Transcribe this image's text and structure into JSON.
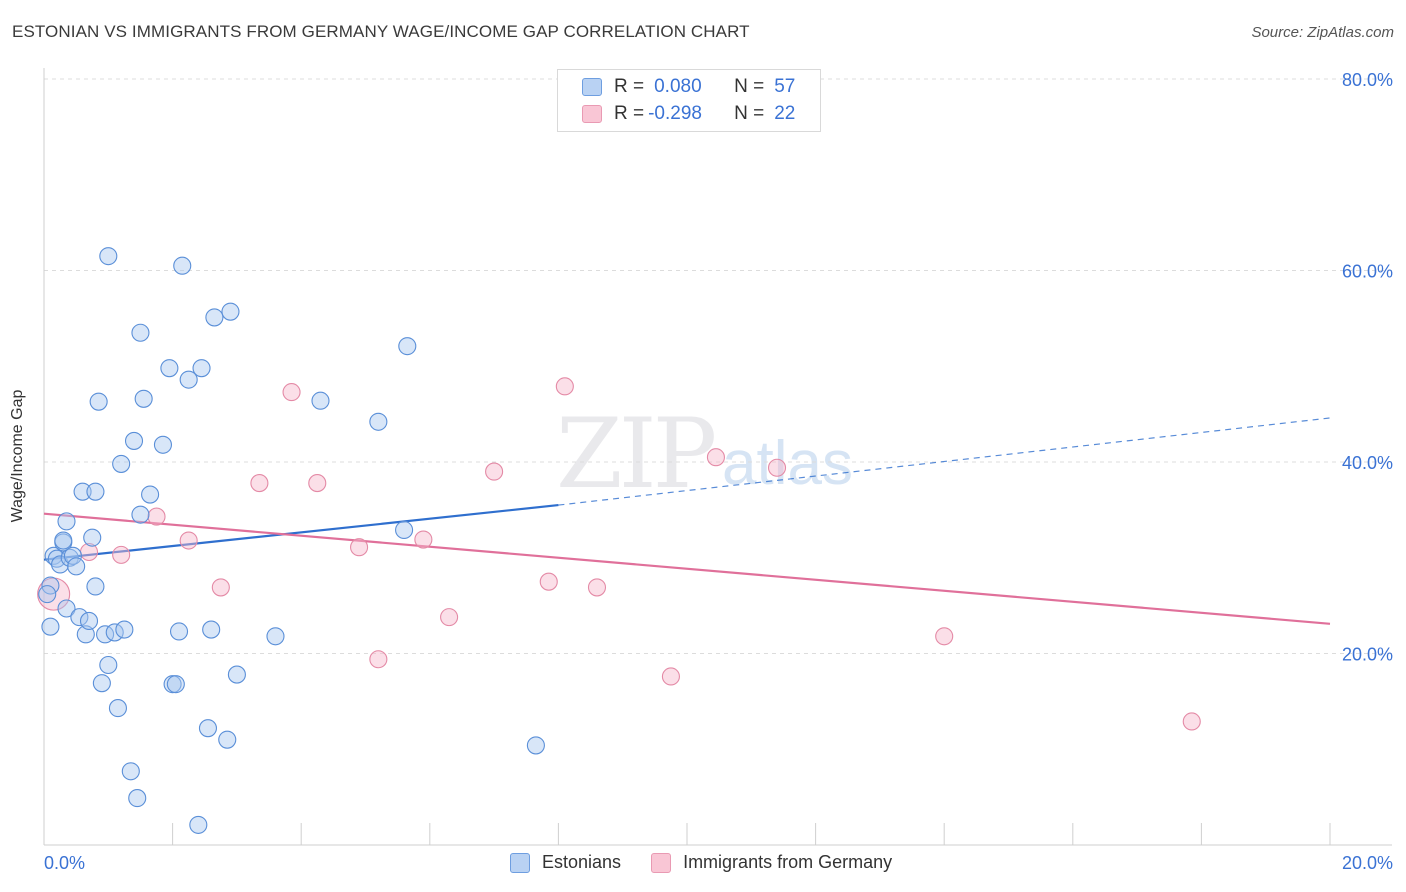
{
  "header": {
    "title": "ESTONIAN VS IMMIGRANTS FROM GERMANY WAGE/INCOME GAP CORRELATION CHART",
    "source": "Source: ZipAtlas.com"
  },
  "watermark": {
    "zip": "ZIP",
    "atlas": "atlas"
  },
  "legend_top": {
    "rows": [
      {
        "r_label": "R =",
        "r_value": "0.080",
        "n_label": "N =",
        "n_value": "57"
      },
      {
        "r_label": "R =",
        "r_value": "-0.298",
        "n_label": "N =",
        "n_value": "22"
      }
    ]
  },
  "legend_bottom": {
    "items": [
      {
        "label": "Estonians"
      },
      {
        "label": "Immigrants from Germany"
      }
    ]
  },
  "colors": {
    "blue_fill": "#a8c8f0",
    "blue_stroke": "#5a8fd8",
    "blue_line": "#2f6fce",
    "pink_fill": "#f7b8cb",
    "pink_stroke": "#e48aa6",
    "pink_line": "#e0709a",
    "axis_text": "#3a72d4",
    "grid": "#dcdcdc"
  },
  "chart_data": {
    "type": "scatter",
    "title": "ESTONIAN VS IMMIGRANTS FROM GERMANY WAGE/INCOME GAP CORRELATION CHART",
    "xlabel": "",
    "ylabel": "Wage/Income Gap",
    "xlim": [
      0,
      20
    ],
    "ylim": [
      0,
      80
    ],
    "x_tick_labels": [
      "0.0%",
      "20.0%"
    ],
    "y_ticks": [
      20,
      40,
      60,
      80
    ],
    "y_tick_labels": [
      "20.0%",
      "40.0%",
      "60.0%",
      "80.0%"
    ],
    "grid": true,
    "series": [
      {
        "name": "Estonians",
        "R": 0.08,
        "N": 57,
        "trend": {
          "x": [
            0,
            8
          ],
          "y": [
            29.8,
            35.5
          ],
          "dashed_to": [
            20,
            44.6
          ]
        },
        "points": [
          [
            0.1,
            22.8
          ],
          [
            0.1,
            27.1
          ],
          [
            0.15,
            30.2
          ],
          [
            0.2,
            29.9
          ],
          [
            0.25,
            29.3
          ],
          [
            0.3,
            31.6
          ],
          [
            0.3,
            31.8
          ],
          [
            0.35,
            24.7
          ],
          [
            0.35,
            33.8
          ],
          [
            0.4,
            30.0
          ],
          [
            0.45,
            30.2
          ],
          [
            0.5,
            29.1
          ],
          [
            0.55,
            23.8
          ],
          [
            0.6,
            36.9
          ],
          [
            0.65,
            22.0
          ],
          [
            0.7,
            23.4
          ],
          [
            0.75,
            32.1
          ],
          [
            0.8,
            36.9
          ],
          [
            0.8,
            27.0
          ],
          [
            0.85,
            46.3
          ],
          [
            0.9,
            16.9
          ],
          [
            0.95,
            22.0
          ],
          [
            1.0,
            18.8
          ],
          [
            1.0,
            61.5
          ],
          [
            1.1,
            22.2
          ],
          [
            1.15,
            14.3
          ],
          [
            1.2,
            39.8
          ],
          [
            1.25,
            22.5
          ],
          [
            1.35,
            7.7
          ],
          [
            1.4,
            42.2
          ],
          [
            1.45,
            4.9
          ],
          [
            1.5,
            53.5
          ],
          [
            1.5,
            34.5
          ],
          [
            1.55,
            46.6
          ],
          [
            1.65,
            36.6
          ],
          [
            1.85,
            41.8
          ],
          [
            1.95,
            49.8
          ],
          [
            2.0,
            16.8
          ],
          [
            2.05,
            16.8
          ],
          [
            2.1,
            22.3
          ],
          [
            2.15,
            60.5
          ],
          [
            2.25,
            48.6
          ],
          [
            2.4,
            2.1
          ],
          [
            2.45,
            49.8
          ],
          [
            2.55,
            12.2
          ],
          [
            2.6,
            22.5
          ],
          [
            2.65,
            55.1
          ],
          [
            2.85,
            11.0
          ],
          [
            2.9,
            55.7
          ],
          [
            3.0,
            17.8
          ],
          [
            3.6,
            21.8
          ],
          [
            4.3,
            46.4
          ],
          [
            5.2,
            44.2
          ],
          [
            5.6,
            32.9
          ],
          [
            5.65,
            52.1
          ],
          [
            7.65,
            10.4
          ],
          [
            0.05,
            26.2
          ]
        ]
      },
      {
        "name": "Immigrants from Germany",
        "R": -0.298,
        "N": 22,
        "trend": {
          "x": [
            0,
            20
          ],
          "y": [
            34.6,
            23.1
          ]
        },
        "points": [
          [
            0.15,
            26.2
          ],
          [
            0.7,
            30.6
          ],
          [
            1.2,
            30.3
          ],
          [
            1.75,
            34.3
          ],
          [
            2.25,
            31.8
          ],
          [
            2.75,
            26.9
          ],
          [
            3.35,
            37.8
          ],
          [
            3.85,
            47.3
          ],
          [
            4.25,
            37.8
          ],
          [
            4.9,
            31.1
          ],
          [
            5.2,
            19.4
          ],
          [
            5.9,
            31.9
          ],
          [
            6.3,
            23.8
          ],
          [
            7.0,
            39.0
          ],
          [
            7.85,
            27.5
          ],
          [
            8.1,
            47.9
          ],
          [
            8.6,
            26.9
          ],
          [
            9.75,
            17.6
          ],
          [
            10.45,
            40.5
          ],
          [
            11.4,
            39.4
          ],
          [
            14.0,
            21.8
          ],
          [
            17.85,
            12.9
          ]
        ]
      }
    ]
  }
}
